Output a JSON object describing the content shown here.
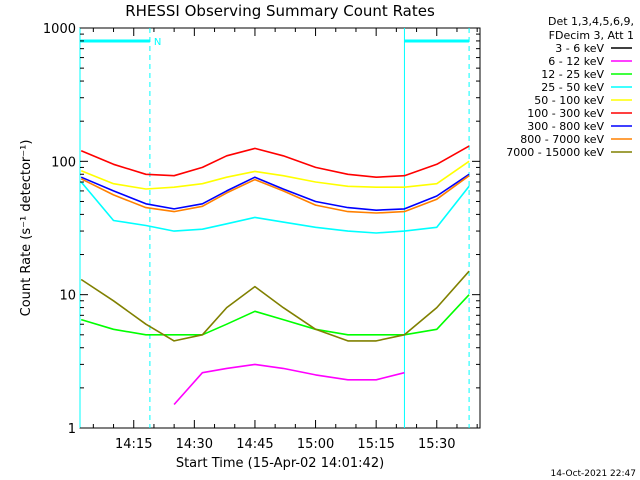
{
  "chart_data": {
    "type": "line",
    "title": "RHESSI Observing Summary Count Rates",
    "xlabel": "Start Time (15-Apr-02 14:01:42)",
    "ylabel": "Count Rate (s⁻¹ detector⁻¹)",
    "yscale": "log",
    "ylim": [
      1,
      1000
    ],
    "xlim": [
      "14:01:42",
      "15:40:42"
    ],
    "x_ticks": [
      "14:15",
      "14:30",
      "14:45",
      "15:00",
      "15:15",
      "15:30"
    ],
    "y_ticks": [
      "1",
      "10",
      "100",
      "1000"
    ],
    "legend_header": [
      "Det 1,3,4,5,6,9,",
      "FDecim 3, Att 1"
    ],
    "legend_placement": "right-outside",
    "timestamp": "14-Oct-2021 22:47",
    "night_marker_label": "N",
    "markers": {
      "solid_cyan": [
        "14:01:42",
        "15:22"
      ],
      "dashed_cyan": [
        "14:19",
        "15:38"
      ],
      "night_bars": [
        [
          "14:01:42",
          "14:19"
        ],
        [
          "15:22",
          "15:38"
        ]
      ]
    },
    "x": [
      "14:02",
      "14:10",
      "14:18",
      "14:25",
      "14:32",
      "14:38",
      "14:45",
      "14:52",
      "15:00",
      "15:08",
      "15:15",
      "15:22",
      "15:30",
      "15:38"
    ],
    "series": [
      {
        "name": "3 - 6 keV",
        "color": "#000000",
        "values": [
          null,
          null,
          null,
          null,
          null,
          null,
          null,
          null,
          null,
          null,
          null,
          null,
          null,
          null
        ]
      },
      {
        "name": "6 - 12 keV",
        "color": "#ff00ff",
        "values": [
          null,
          null,
          null,
          1.5,
          2.6,
          2.8,
          3.0,
          2.8,
          2.5,
          2.3,
          2.3,
          2.6,
          null,
          null
        ]
      },
      {
        "name": "12 - 25 keV",
        "color": "#00ff00",
        "values": [
          6.5,
          5.5,
          5.0,
          5.0,
          5.0,
          6.0,
          7.5,
          6.5,
          5.5,
          5.0,
          5.0,
          5.0,
          5.5,
          10
        ]
      },
      {
        "name": "25 - 50 keV",
        "color": "#00ffff",
        "values": [
          70,
          36,
          33,
          30,
          31,
          34,
          38,
          35,
          32,
          30,
          29,
          30,
          32,
          65
        ]
      },
      {
        "name": "50 - 100 keV",
        "color": "#ffff00",
        "values": [
          85,
          68,
          62,
          64,
          68,
          76,
          84,
          78,
          70,
          65,
          64,
          64,
          68,
          100
        ]
      },
      {
        "name": "100 - 300 keV",
        "color": "#ff0000",
        "values": [
          120,
          95,
          80,
          78,
          90,
          110,
          125,
          110,
          90,
          80,
          76,
          78,
          95,
          130
        ]
      },
      {
        "name": "300 - 800 keV",
        "color": "#0000ff",
        "values": [
          76,
          60,
          48,
          44,
          48,
          60,
          76,
          62,
          50,
          45,
          43,
          44,
          55,
          80
        ]
      },
      {
        "name": "800 - 7000 keV",
        "color": "#ff8000",
        "values": [
          74,
          56,
          45,
          42,
          46,
          58,
          73,
          60,
          47,
          42,
          41,
          42,
          52,
          78
        ]
      },
      {
        "name": "7000 - 15000 keV",
        "color": "#808000",
        "values": [
          13,
          9,
          6,
          4.5,
          5,
          8,
          11.5,
          8,
          5.5,
          4.5,
          4.5,
          5,
          8,
          15
        ]
      }
    ]
  }
}
